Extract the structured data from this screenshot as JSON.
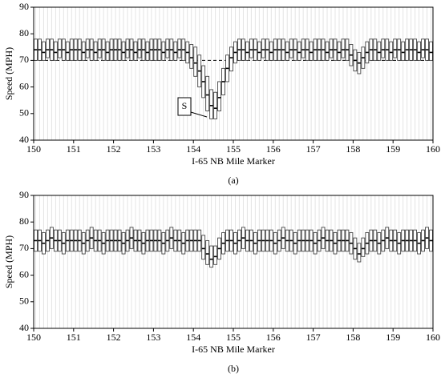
{
  "chart_data": [
    {
      "type": "box",
      "x_label": "I-65 NB Mile Marker",
      "y_label": "Speed (MPH)",
      "caption": "(a)",
      "annotation": "S",
      "reference_line": 70,
      "xlim": [
        150,
        160
      ],
      "ylim": [
        40,
        90
      ],
      "xticks": [
        150,
        151,
        152,
        153,
        154,
        155,
        156,
        157,
        158,
        159,
        160
      ],
      "yticks": [
        40,
        50,
        60,
        70,
        80,
        90
      ],
      "x": [
        150.05,
        150.15,
        150.25,
        150.35,
        150.45,
        150.55,
        150.65,
        150.75,
        150.85,
        150.95,
        151.05,
        151.15,
        151.25,
        151.35,
        151.45,
        151.55,
        151.65,
        151.75,
        151.85,
        151.95,
        152.05,
        152.15,
        152.25,
        152.35,
        152.45,
        152.55,
        152.65,
        152.75,
        152.85,
        152.95,
        153.05,
        153.15,
        153.25,
        153.35,
        153.45,
        153.55,
        153.65,
        153.75,
        153.85,
        153.95,
        154.05,
        154.15,
        154.25,
        154.35,
        154.45,
        154.55,
        154.65,
        154.75,
        154.85,
        154.95,
        155.05,
        155.15,
        155.25,
        155.35,
        155.45,
        155.55,
        155.65,
        155.75,
        155.85,
        155.95,
        156.05,
        156.15,
        156.25,
        156.35,
        156.45,
        156.55,
        156.65,
        156.75,
        156.85,
        156.95,
        157.05,
        157.15,
        157.25,
        157.35,
        157.45,
        157.55,
        157.65,
        157.75,
        157.85,
        157.95,
        158.05,
        158.15,
        158.25,
        158.35,
        158.45,
        158.55,
        158.65,
        158.75,
        158.85,
        158.95,
        159.05,
        159.15,
        159.25,
        159.35,
        159.45,
        159.55,
        159.65,
        159.75,
        159.85,
        159.95
      ],
      "q3": [
        78,
        78,
        77,
        78,
        78,
        77,
        78,
        78,
        77,
        78,
        78,
        78,
        77,
        78,
        78,
        77,
        78,
        78,
        77,
        78,
        78,
        78,
        77,
        78,
        78,
        77,
        78,
        78,
        77,
        78,
        78,
        78,
        77,
        78,
        78,
        77,
        78,
        78,
        77,
        76,
        75,
        72,
        68,
        64,
        59,
        58,
        62,
        67,
        72,
        75,
        77,
        78,
        78,
        77,
        78,
        78,
        77,
        78,
        78,
        77,
        78,
        78,
        78,
        77,
        78,
        78,
        77,
        78,
        78,
        77,
        78,
        78,
        78,
        77,
        78,
        78,
        77,
        78,
        78,
        76,
        74,
        73,
        75,
        77,
        78,
        78,
        77,
        78,
        78,
        77,
        78,
        78,
        77,
        78,
        78,
        78,
        77,
        78,
        78,
        77
      ],
      "median": [
        74,
        74,
        73,
        74,
        74,
        73,
        74,
        74,
        73,
        74,
        74,
        74,
        73,
        74,
        74,
        73,
        74,
        74,
        73,
        74,
        74,
        74,
        73,
        74,
        74,
        73,
        74,
        74,
        73,
        74,
        74,
        74,
        73,
        74,
        74,
        73,
        74,
        74,
        73,
        71,
        69,
        66,
        62,
        57,
        53,
        52,
        56,
        62,
        67,
        71,
        73,
        74,
        74,
        73,
        74,
        74,
        73,
        74,
        74,
        73,
        74,
        74,
        74,
        73,
        74,
        74,
        73,
        74,
        74,
        73,
        74,
        74,
        74,
        73,
        74,
        74,
        73,
        74,
        74,
        72,
        70,
        69,
        71,
        73,
        74,
        74,
        73,
        74,
        74,
        73,
        74,
        74,
        73,
        74,
        74,
        74,
        73,
        74,
        74,
        73
      ],
      "q1": [
        70,
        70,
        70,
        71,
        70,
        70,
        71,
        70,
        70,
        70,
        70,
        70,
        70,
        71,
        70,
        70,
        71,
        70,
        70,
        70,
        70,
        70,
        70,
        71,
        70,
        70,
        71,
        70,
        70,
        70,
        70,
        70,
        70,
        71,
        70,
        70,
        71,
        70,
        69,
        67,
        64,
        60,
        56,
        51,
        48,
        48,
        51,
        57,
        62,
        66,
        69,
        70,
        70,
        70,
        71,
        70,
        70,
        71,
        70,
        70,
        70,
        70,
        70,
        70,
        71,
        70,
        70,
        71,
        70,
        70,
        70,
        70,
        70,
        70,
        71,
        70,
        70,
        71,
        70,
        68,
        66,
        65,
        67,
        69,
        70,
        70,
        70,
        71,
        70,
        70,
        71,
        70,
        70,
        70,
        70,
        70,
        70,
        71,
        70,
        70
      ]
    },
    {
      "type": "box",
      "x_label": "I-65 NB Mile Marker",
      "y_label": "Speed (MPH)",
      "caption": "(b)",
      "xlim": [
        150,
        160
      ],
      "ylim": [
        40,
        90
      ],
      "xticks": [
        150,
        151,
        152,
        153,
        154,
        155,
        156,
        157,
        158,
        159,
        160
      ],
      "yticks": [
        40,
        50,
        60,
        70,
        80,
        90
      ],
      "x": [
        150.05,
        150.15,
        150.25,
        150.35,
        150.45,
        150.55,
        150.65,
        150.75,
        150.85,
        150.95,
        151.05,
        151.15,
        151.25,
        151.35,
        151.45,
        151.55,
        151.65,
        151.75,
        151.85,
        151.95,
        152.05,
        152.15,
        152.25,
        152.35,
        152.45,
        152.55,
        152.65,
        152.75,
        152.85,
        152.95,
        153.05,
        153.15,
        153.25,
        153.35,
        153.45,
        153.55,
        153.65,
        153.75,
        153.85,
        153.95,
        154.05,
        154.15,
        154.25,
        154.35,
        154.45,
        154.55,
        154.65,
        154.75,
        154.85,
        154.95,
        155.05,
        155.15,
        155.25,
        155.35,
        155.45,
        155.55,
        155.65,
        155.75,
        155.85,
        155.95,
        156.05,
        156.15,
        156.25,
        156.35,
        156.45,
        156.55,
        156.65,
        156.75,
        156.85,
        156.95,
        157.05,
        157.15,
        157.25,
        157.35,
        157.45,
        157.55,
        157.65,
        157.75,
        157.85,
        157.95,
        158.05,
        158.15,
        158.25,
        158.35,
        158.45,
        158.55,
        158.65,
        158.75,
        158.85,
        158.95,
        159.05,
        159.15,
        159.25,
        159.35,
        159.45,
        159.55,
        159.65,
        159.75,
        159.85,
        159.95
      ],
      "q3": [
        77,
        77,
        76,
        77,
        78,
        77,
        77,
        76,
        77,
        77,
        77,
        77,
        76,
        77,
        78,
        77,
        77,
        76,
        77,
        77,
        77,
        77,
        76,
        77,
        78,
        77,
        77,
        76,
        77,
        77,
        77,
        77,
        76,
        77,
        78,
        77,
        77,
        76,
        77,
        77,
        77,
        77,
        75,
        73,
        71,
        71,
        74,
        76,
        77,
        77,
        76,
        77,
        78,
        77,
        77,
        76,
        77,
        77,
        77,
        77,
        76,
        77,
        78,
        77,
        77,
        76,
        77,
        77,
        77,
        77,
        76,
        77,
        78,
        77,
        77,
        76,
        77,
        77,
        77,
        76,
        74,
        72,
        74,
        76,
        77,
        77,
        76,
        77,
        78,
        77,
        77,
        76,
        77,
        77,
        77,
        77,
        76,
        77,
        78,
        77
      ],
      "median": [
        73,
        73,
        72,
        73,
        74,
        73,
        73,
        72,
        73,
        73,
        73,
        73,
        72,
        73,
        74,
        73,
        73,
        72,
        73,
        73,
        73,
        73,
        72,
        73,
        74,
        73,
        73,
        72,
        73,
        73,
        73,
        73,
        72,
        73,
        74,
        73,
        73,
        72,
        73,
        73,
        73,
        73,
        70,
        68,
        66,
        67,
        70,
        72,
        73,
        73,
        72,
        73,
        74,
        73,
        73,
        72,
        73,
        73,
        73,
        73,
        72,
        73,
        74,
        73,
        73,
        72,
        73,
        73,
        73,
        73,
        72,
        73,
        74,
        73,
        73,
        72,
        73,
        73,
        73,
        72,
        70,
        68,
        70,
        72,
        73,
        73,
        72,
        73,
        74,
        73,
        73,
        72,
        73,
        73,
        73,
        73,
        72,
        73,
        74,
        73
      ],
      "q1": [
        69,
        69,
        68,
        69,
        70,
        69,
        69,
        68,
        69,
        69,
        69,
        69,
        68,
        69,
        70,
        69,
        69,
        68,
        69,
        69,
        69,
        69,
        68,
        69,
        70,
        69,
        69,
        68,
        69,
        69,
        69,
        69,
        68,
        69,
        70,
        69,
        69,
        68,
        69,
        69,
        69,
        69,
        66,
        64,
        63,
        64,
        66,
        68,
        69,
        69,
        68,
        69,
        70,
        69,
        69,
        68,
        69,
        69,
        69,
        69,
        68,
        69,
        70,
        69,
        69,
        68,
        69,
        69,
        69,
        69,
        68,
        69,
        70,
        69,
        69,
        68,
        69,
        69,
        69,
        68,
        66,
        65,
        67,
        68,
        69,
        69,
        68,
        69,
        70,
        69,
        69,
        68,
        69,
        69,
        69,
        69,
        68,
        69,
        70,
        69
      ]
    }
  ]
}
